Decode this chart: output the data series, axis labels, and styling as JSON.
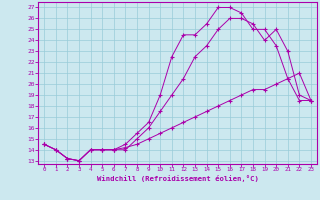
{
  "xlabel": "Windchill (Refroidissement éolien,°C)",
  "bg_color": "#cce8ef",
  "grid_color": "#99ccd9",
  "line_color": "#aa00aa",
  "xlim_min": -0.5,
  "xlim_max": 23.5,
  "ylim_min": 12.7,
  "ylim_max": 27.5,
  "yticks": [
    13,
    14,
    15,
    16,
    17,
    18,
    19,
    20,
    21,
    22,
    23,
    24,
    25,
    26,
    27
  ],
  "xticks": [
    0,
    1,
    2,
    3,
    4,
    5,
    6,
    7,
    8,
    9,
    10,
    11,
    12,
    13,
    14,
    15,
    16,
    17,
    18,
    19,
    20,
    21,
    22,
    23
  ],
  "line1_x": [
    0,
    1,
    2,
    3,
    4,
    5,
    6,
    7,
    8,
    9,
    10,
    11,
    12,
    13,
    14,
    15,
    16,
    17,
    18,
    19,
    20,
    21,
    22,
    23
  ],
  "line1_y": [
    14.5,
    14.0,
    13.2,
    13.0,
    14.0,
    14.0,
    14.0,
    14.2,
    14.5,
    15.0,
    15.5,
    16.0,
    16.5,
    17.0,
    17.5,
    18.0,
    18.5,
    19.0,
    19.5,
    19.5,
    20.0,
    20.5,
    21.0,
    18.5
  ],
  "line2_x": [
    0,
    1,
    2,
    3,
    4,
    5,
    6,
    7,
    8,
    9,
    10,
    11,
    12,
    13,
    14,
    15,
    16,
    17,
    18,
    19,
    20,
    21,
    22,
    23
  ],
  "line2_y": [
    14.5,
    14.0,
    13.2,
    13.0,
    14.0,
    14.0,
    14.0,
    14.5,
    15.5,
    16.5,
    19.0,
    22.5,
    24.5,
    24.5,
    25.5,
    27.0,
    27.0,
    26.5,
    25.0,
    25.0,
    23.5,
    20.5,
    18.5,
    18.5
  ],
  "line3_x": [
    0,
    1,
    2,
    3,
    4,
    5,
    6,
    7,
    8,
    9,
    10,
    11,
    12,
    13,
    14,
    15,
    16,
    17,
    18,
    19,
    20,
    21,
    22,
    23
  ],
  "line3_y": [
    14.5,
    14.0,
    13.2,
    13.0,
    14.0,
    14.0,
    14.0,
    14.0,
    15.0,
    16.0,
    17.5,
    19.0,
    20.5,
    22.5,
    23.5,
    25.0,
    26.0,
    26.0,
    25.5,
    24.0,
    25.0,
    23.0,
    19.0,
    18.5
  ]
}
